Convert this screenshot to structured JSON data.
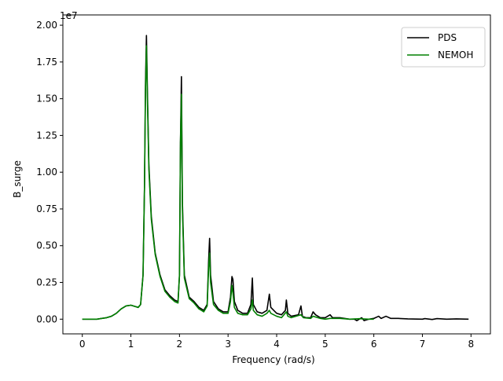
{
  "chart_data": {
    "type": "line",
    "title": "",
    "xlabel": "Frequency (rad/s)",
    "ylabel": "B_surge",
    "y_offset_label": "1e7",
    "xlim": [
      -0.4,
      8.4
    ],
    "ylim": [
      -0.1,
      2.07
    ],
    "x_ticks": [
      0,
      1,
      2,
      3,
      4,
      5,
      6,
      7,
      8
    ],
    "x_tick_labels": [
      "0",
      "1",
      "2",
      "3",
      "4",
      "5",
      "6",
      "7",
      "8"
    ],
    "y_ticks": [
      0,
      0.25,
      0.5,
      0.75,
      1.0,
      1.25,
      1.5,
      1.75,
      2.0
    ],
    "y_tick_labels": [
      "0.00",
      "0.25",
      "0.50",
      "0.75",
      "1.00",
      "1.25",
      "1.50",
      "1.75",
      "2.00"
    ],
    "grid": false,
    "legend_position": "top-right",
    "series": [
      {
        "name": "PDS",
        "color": "#000000",
        "points": [
          [
            0.0,
            0.0
          ],
          [
            0.3,
            0.0
          ],
          [
            0.5,
            0.01
          ],
          [
            0.6,
            0.02
          ],
          [
            0.7,
            0.04
          ],
          [
            0.8,
            0.07
          ],
          [
            0.9,
            0.09
          ],
          [
            1.0,
            0.095
          ],
          [
            1.1,
            0.085
          ],
          [
            1.15,
            0.08
          ],
          [
            1.2,
            0.1
          ],
          [
            1.25,
            0.3
          ],
          [
            1.28,
            0.9
          ],
          [
            1.3,
            1.6
          ],
          [
            1.32,
            1.93
          ],
          [
            1.34,
            1.55
          ],
          [
            1.37,
            1.05
          ],
          [
            1.42,
            0.7
          ],
          [
            1.5,
            0.45
          ],
          [
            1.6,
            0.3
          ],
          [
            1.7,
            0.2
          ],
          [
            1.8,
            0.16
          ],
          [
            1.9,
            0.13
          ],
          [
            1.97,
            0.12
          ],
          [
            2.0,
            0.3
          ],
          [
            2.02,
            1.2
          ],
          [
            2.04,
            1.65
          ],
          [
            2.06,
            0.8
          ],
          [
            2.1,
            0.3
          ],
          [
            2.2,
            0.15
          ],
          [
            2.3,
            0.12
          ],
          [
            2.4,
            0.08
          ],
          [
            2.5,
            0.06
          ],
          [
            2.57,
            0.1
          ],
          [
            2.6,
            0.4
          ],
          [
            2.62,
            0.55
          ],
          [
            2.64,
            0.3
          ],
          [
            2.7,
            0.12
          ],
          [
            2.8,
            0.07
          ],
          [
            2.9,
            0.05
          ],
          [
            3.0,
            0.05
          ],
          [
            3.05,
            0.15
          ],
          [
            3.08,
            0.29
          ],
          [
            3.1,
            0.27
          ],
          [
            3.13,
            0.12
          ],
          [
            3.2,
            0.06
          ],
          [
            3.3,
            0.04
          ],
          [
            3.4,
            0.04
          ],
          [
            3.47,
            0.1
          ],
          [
            3.5,
            0.28
          ],
          [
            3.52,
            0.1
          ],
          [
            3.6,
            0.05
          ],
          [
            3.7,
            0.04
          ],
          [
            3.8,
            0.06
          ],
          [
            3.85,
            0.17
          ],
          [
            3.88,
            0.08
          ],
          [
            4.0,
            0.04
          ],
          [
            4.1,
            0.03
          ],
          [
            4.18,
            0.06
          ],
          [
            4.2,
            0.13
          ],
          [
            4.23,
            0.04
          ],
          [
            4.3,
            0.02
          ],
          [
            4.45,
            0.03
          ],
          [
            4.5,
            0.09
          ],
          [
            4.53,
            0.02
          ],
          [
            4.6,
            0.01
          ],
          [
            4.7,
            0.01
          ],
          [
            4.75,
            0.05
          ],
          [
            4.8,
            0.03
          ],
          [
            4.9,
            0.01
          ],
          [
            5.0,
            0.01
          ],
          [
            5.1,
            0.03
          ],
          [
            5.15,
            0.01
          ],
          [
            5.3,
            0.01
          ],
          [
            5.5,
            0.0
          ],
          [
            5.6,
            0.0
          ],
          [
            5.65,
            -0.01
          ],
          [
            5.75,
            0.01
          ],
          [
            5.8,
            -0.01
          ],
          [
            5.9,
            0.0
          ],
          [
            6.0,
            0.005
          ],
          [
            6.1,
            0.02
          ],
          [
            6.15,
            0.005
          ],
          [
            6.25,
            0.02
          ],
          [
            6.35,
            0.005
          ],
          [
            6.5,
            0.005
          ],
          [
            6.7,
            0.002
          ],
          [
            7.0,
            0.0
          ],
          [
            7.05,
            0.004
          ],
          [
            7.2,
            -0.002
          ],
          [
            7.3,
            0.004
          ],
          [
            7.5,
            0.0
          ],
          [
            7.7,
            0.002
          ],
          [
            7.95,
            0.0
          ]
        ]
      },
      {
        "name": "NEMOH",
        "color": "#008000",
        "points": [
          [
            0.0,
            0.0
          ],
          [
            0.3,
            0.0
          ],
          [
            0.5,
            0.01
          ],
          [
            0.6,
            0.02
          ],
          [
            0.7,
            0.04
          ],
          [
            0.8,
            0.07
          ],
          [
            0.9,
            0.09
          ],
          [
            1.0,
            0.095
          ],
          [
            1.1,
            0.085
          ],
          [
            1.15,
            0.08
          ],
          [
            1.2,
            0.1
          ],
          [
            1.25,
            0.3
          ],
          [
            1.28,
            0.9
          ],
          [
            1.3,
            1.55
          ],
          [
            1.32,
            1.86
          ],
          [
            1.34,
            1.5
          ],
          [
            1.37,
            1.02
          ],
          [
            1.42,
            0.68
          ],
          [
            1.5,
            0.44
          ],
          [
            1.6,
            0.29
          ],
          [
            1.7,
            0.19
          ],
          [
            1.8,
            0.15
          ],
          [
            1.9,
            0.12
          ],
          [
            1.97,
            0.11
          ],
          [
            2.0,
            0.3
          ],
          [
            2.02,
            1.2
          ],
          [
            2.04,
            1.53
          ],
          [
            2.06,
            0.75
          ],
          [
            2.1,
            0.28
          ],
          [
            2.2,
            0.14
          ],
          [
            2.3,
            0.11
          ],
          [
            2.4,
            0.07
          ],
          [
            2.5,
            0.05
          ],
          [
            2.57,
            0.09
          ],
          [
            2.6,
            0.35
          ],
          [
            2.62,
            0.45
          ],
          [
            2.64,
            0.25
          ],
          [
            2.7,
            0.1
          ],
          [
            2.8,
            0.06
          ],
          [
            2.9,
            0.04
          ],
          [
            3.0,
            0.04
          ],
          [
            3.05,
            0.12
          ],
          [
            3.08,
            0.23
          ],
          [
            3.1,
            0.18
          ],
          [
            3.13,
            0.08
          ],
          [
            3.2,
            0.04
          ],
          [
            3.3,
            0.03
          ],
          [
            3.4,
            0.03
          ],
          [
            3.47,
            0.07
          ],
          [
            3.5,
            0.13
          ],
          [
            3.52,
            0.06
          ],
          [
            3.6,
            0.03
          ],
          [
            3.7,
            0.02
          ],
          [
            3.8,
            0.04
          ],
          [
            3.85,
            0.06
          ],
          [
            3.88,
            0.04
          ],
          [
            4.0,
            0.02
          ],
          [
            4.1,
            0.01
          ],
          [
            4.2,
            0.05
          ],
          [
            4.23,
            0.02
          ],
          [
            4.3,
            0.01
          ],
          [
            4.5,
            0.03
          ],
          [
            4.55,
            0.01
          ],
          [
            4.7,
            0.005
          ],
          [
            4.75,
            0.02
          ],
          [
            4.9,
            0.005
          ],
          [
            5.0,
            0.0
          ],
          [
            5.1,
            0.005
          ],
          [
            5.3,
            0.005
          ],
          [
            5.5,
            0.0
          ],
          [
            5.7,
            0.003
          ],
          [
            5.9,
            0.0
          ],
          [
            6.0,
            0.0
          ]
        ]
      }
    ]
  }
}
